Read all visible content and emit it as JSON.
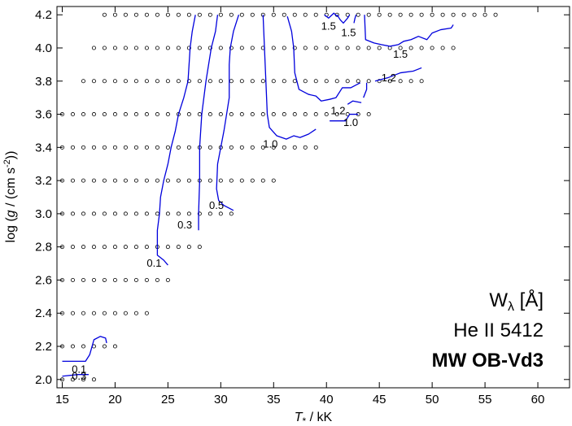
{
  "chart_data": {
    "type": "scatter",
    "xlabel": "T",
    "xlabel_sub": "*",
    "xlabel_unit": " / kK",
    "ylabel_prefix": "log (",
    "ylabel_g": "g",
    "ylabel_mid": " / (cm s",
    "ylabel_exp": "-2",
    "ylabel_suffix": "))",
    "xlim": [
      14.5,
      63
    ],
    "ylim": [
      1.95,
      4.25
    ],
    "xticks": [
      15,
      20,
      25,
      30,
      35,
      40,
      45,
      50,
      55,
      60
    ],
    "xtick_labels": [
      "15",
      "20",
      "25",
      "30",
      "35",
      "40",
      "45",
      "50",
      "55",
      "60"
    ],
    "yticks": [
      2.0,
      2.2,
      2.4,
      2.6,
      2.8,
      3.0,
      3.2,
      3.4,
      3.6,
      3.8,
      4.0,
      4.2
    ],
    "ytick_labels": [
      "2.0",
      "2.2",
      "2.4",
      "2.6",
      "2.8",
      "3.0",
      "3.2",
      "3.4",
      "3.6",
      "3.8",
      "4.0",
      "4.2"
    ],
    "grid_rows": [
      {
        "logg": 4.2,
        "teff_min": 19,
        "teff_max": 56
      },
      {
        "logg": 4.0,
        "teff_min": 18,
        "teff_max": 52
      },
      {
        "logg": 3.8,
        "teff_min": 17,
        "teff_max": 49
      },
      {
        "logg": 3.6,
        "teff_min": 15,
        "teff_max": 44
      },
      {
        "logg": 3.4,
        "teff_min": 15,
        "teff_max": 39
      },
      {
        "logg": 3.2,
        "teff_min": 15,
        "teff_max": 35
      },
      {
        "logg": 3.0,
        "teff_min": 15,
        "teff_max": 31
      },
      {
        "logg": 2.8,
        "teff_min": 15,
        "teff_max": 28
      },
      {
        "logg": 2.6,
        "teff_min": 15,
        "teff_max": 25
      },
      {
        "logg": 2.4,
        "teff_min": 15,
        "teff_max": 23
      },
      {
        "logg": 2.2,
        "teff_min": 15,
        "teff_max": 20
      },
      {
        "logg": 2.0,
        "teff_min": 15,
        "teff_max": 18
      }
    ],
    "grid_step": 1,
    "contour_color": "#0000dd",
    "contours": [
      {
        "points": [
          [
            15.0,
            2.11
          ],
          [
            17.2,
            2.11
          ],
          [
            17.6,
            2.15
          ],
          [
            18.0,
            2.24
          ],
          [
            18.6,
            2.26
          ],
          [
            19.1,
            2.25
          ],
          [
            19.2,
            2.22
          ]
        ]
      },
      {
        "points": [
          [
            15.0,
            2.02
          ],
          [
            16.5,
            2.03
          ],
          [
            17.5,
            2.03
          ]
        ]
      },
      {
        "points": [
          [
            25.0,
            2.69
          ],
          [
            24.6,
            2.72
          ],
          [
            24.0,
            2.75
          ],
          [
            24.0,
            2.8
          ],
          [
            24.0,
            2.9
          ],
          [
            24.2,
            3.0
          ],
          [
            24.3,
            3.1
          ],
          [
            24.6,
            3.2
          ],
          [
            25.0,
            3.3
          ],
          [
            25.3,
            3.4
          ],
          [
            25.7,
            3.5
          ],
          [
            26.0,
            3.6
          ],
          [
            26.5,
            3.7
          ],
          [
            26.9,
            3.8
          ],
          [
            27.0,
            3.9
          ],
          [
            27.1,
            4.0
          ],
          [
            27.3,
            4.1
          ],
          [
            27.6,
            4.2
          ]
        ]
      },
      {
        "points": [
          [
            27.9,
            2.9
          ],
          [
            27.9,
            3.0
          ],
          [
            28.0,
            3.2
          ],
          [
            28.0,
            3.4
          ],
          [
            28.2,
            3.6
          ],
          [
            28.6,
            3.8
          ],
          [
            29.1,
            4.0
          ],
          [
            29.5,
            4.1
          ],
          [
            29.7,
            4.2
          ]
        ]
      },
      {
        "points": [
          [
            31.2,
            3.02
          ],
          [
            30.3,
            3.05
          ],
          [
            29.8,
            3.08
          ],
          [
            29.6,
            3.15
          ],
          [
            29.7,
            3.3
          ],
          [
            30.3,
            3.5
          ],
          [
            30.8,
            3.7
          ],
          [
            30.8,
            3.9
          ],
          [
            30.9,
            4.0
          ],
          [
            31.2,
            4.1
          ],
          [
            31.7,
            4.2
          ]
        ]
      },
      {
        "points": [
          [
            39.0,
            3.51
          ],
          [
            38.3,
            3.48
          ],
          [
            37.5,
            3.46
          ],
          [
            36.9,
            3.47
          ],
          [
            36.2,
            3.45
          ],
          [
            35.3,
            3.47
          ],
          [
            34.6,
            3.52
          ],
          [
            34.4,
            3.6
          ],
          [
            34.3,
            3.75
          ],
          [
            34.2,
            3.9
          ],
          [
            34.1,
            4.05
          ],
          [
            34.0,
            4.2
          ]
        ]
      },
      {
        "points": [
          [
            43.2,
            3.79
          ],
          [
            42.3,
            3.76
          ],
          [
            41.5,
            3.76
          ],
          [
            40.9,
            3.7
          ],
          [
            40.3,
            3.69
          ],
          [
            39.5,
            3.68
          ],
          [
            39.0,
            3.71
          ],
          [
            38.3,
            3.72
          ],
          [
            37.4,
            3.75
          ],
          [
            37.0,
            3.85
          ],
          [
            36.9,
            4.0
          ],
          [
            36.7,
            4.1
          ],
          [
            36.3,
            4.19
          ]
        ]
      },
      {
        "points": [
          [
            43.0,
            3.6
          ],
          [
            42.2,
            3.6
          ],
          [
            41.8,
            3.56
          ],
          [
            40.3,
            3.56
          ]
        ]
      },
      {
        "points": [
          [
            43.3,
            3.67
          ],
          [
            42.5,
            3.68
          ],
          [
            42.0,
            3.66
          ]
        ]
      },
      {
        "points": [
          [
            43.8,
            3.79
          ],
          [
            43.8,
            3.75
          ],
          [
            43.5,
            3.7
          ]
        ]
      },
      {
        "points": [
          [
            44.6,
            3.8
          ],
          [
            45.8,
            3.82
          ],
          [
            47.0,
            3.85
          ],
          [
            48.2,
            3.86
          ],
          [
            49.0,
            3.88
          ]
        ]
      },
      {
        "points": [
          [
            43.6,
            4.2
          ],
          [
            43.7,
            4.05
          ],
          [
            44.5,
            4.03
          ],
          [
            45.2,
            4.02
          ],
          [
            46.0,
            4.01
          ],
          [
            46.8,
            4.02
          ],
          [
            47.3,
            4.04
          ],
          [
            48.0,
            4.05
          ],
          [
            48.7,
            4.07
          ],
          [
            49.5,
            4.05
          ],
          [
            50.0,
            4.09
          ],
          [
            50.8,
            4.11
          ],
          [
            51.8,
            4.12
          ],
          [
            52.0,
            4.14
          ]
        ]
      },
      {
        "points": [
          [
            41.0,
            4.2
          ],
          [
            41.3,
            4.17
          ],
          [
            41.6,
            4.15
          ],
          [
            42.0,
            4.18
          ],
          [
            42.2,
            4.2
          ]
        ]
      },
      {
        "points": [
          [
            39.8,
            4.2
          ],
          [
            40.2,
            4.18
          ],
          [
            40.7,
            4.21
          ],
          [
            41.0,
            4.19
          ]
        ]
      },
      {
        "points": [
          [
            42.6,
            4.15
          ],
          [
            42.7,
            4.18
          ],
          [
            42.8,
            4.2
          ]
        ]
      }
    ],
    "contour_labels": [
      {
        "text": "0.1",
        "x": 15.9,
        "y": 2.04
      },
      {
        "text": "0.3",
        "x": 15.9,
        "y": 2.0
      },
      {
        "text": "0.1",
        "x": 23.0,
        "y": 2.68
      },
      {
        "text": "0.3",
        "x": 25.9,
        "y": 2.91
      },
      {
        "text": "0.5",
        "x": 28.9,
        "y": 3.03
      },
      {
        "text": "1.0",
        "x": 34.0,
        "y": 3.4
      },
      {
        "text": "1.2",
        "x": 40.4,
        "y": 3.6
      },
      {
        "text": "1.0",
        "x": 41.6,
        "y": 3.53
      },
      {
        "text": "1.2",
        "x": 45.2,
        "y": 3.8
      },
      {
        "text": "1.5",
        "x": 39.5,
        "y": 4.11
      },
      {
        "text": "1.5",
        "x": 41.4,
        "y": 4.07
      },
      {
        "text": "1.5",
        "x": 46.3,
        "y": 3.94
      }
    ]
  },
  "annotation": {
    "line1_main": "W",
    "line1_sub": "λ",
    "line1_unit": "  [Å]",
    "line2": "He II 5412",
    "line3": "MW OB-Vd3"
  }
}
